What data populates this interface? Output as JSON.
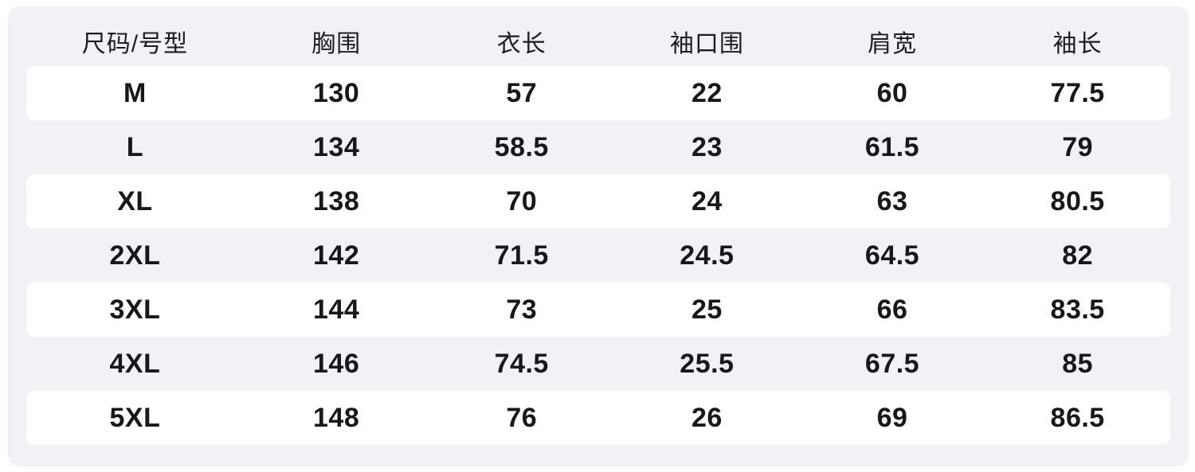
{
  "colors": {
    "page_bg": "#ffffff",
    "panel_bg": "#f1f2f6",
    "row_alt_bg": "#ffffff",
    "text": "#17171c"
  },
  "chart_data": {
    "type": "table",
    "columns": [
      "尺码/号型",
      "胸围",
      "衣长",
      "袖口围",
      "肩宽",
      "袖长"
    ],
    "rows": [
      [
        "M",
        "130",
        "57",
        "22",
        "60",
        "77.5"
      ],
      [
        "L",
        "134",
        "58.5",
        "23",
        "61.5",
        "79"
      ],
      [
        "XL",
        "138",
        "70",
        "24",
        "63",
        "80.5"
      ],
      [
        "2XL",
        "142",
        "71.5",
        "24.5",
        "64.5",
        "82"
      ],
      [
        "3XL",
        "144",
        "73",
        "25",
        "66",
        "83.5"
      ],
      [
        "4XL",
        "146",
        "74.5",
        "25.5",
        "67.5",
        "85"
      ],
      [
        "5XL",
        "148",
        "76",
        "26",
        "69",
        "86.5"
      ]
    ]
  }
}
